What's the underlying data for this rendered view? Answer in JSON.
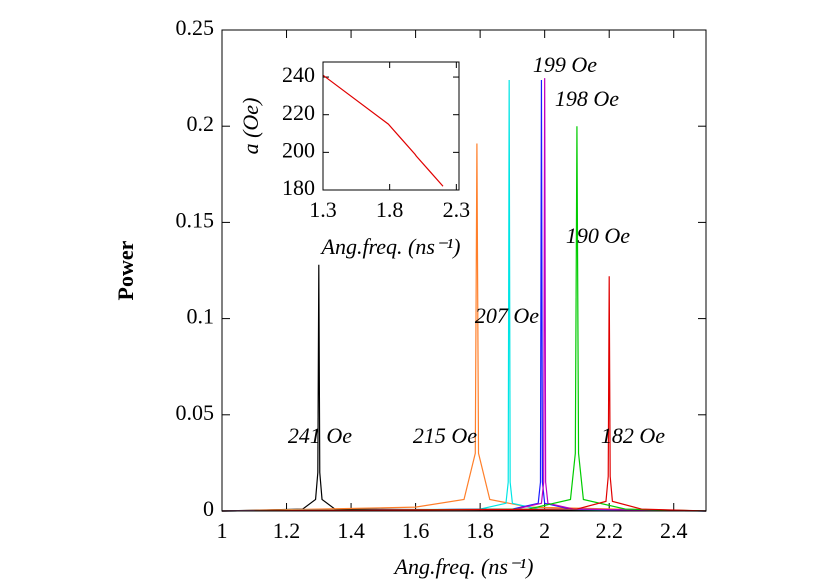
{
  "chart_data": [
    {
      "type": "line",
      "xlabel": "Ang.freq. (ns⁻¹)",
      "ylabel": "Power",
      "xlim": [
        1,
        2.5
      ],
      "ylim": [
        0,
        0.25
      ],
      "xticks": [
        1,
        1.2,
        1.4,
        1.6,
        1.8,
        2,
        2.2,
        2.4
      ],
      "yticks": [
        0,
        0.05,
        0.1,
        0.15,
        0.2,
        0.25
      ],
      "series": [
        {
          "name": "241 Oe",
          "color": "#000000",
          "x": [
            1.0,
            1.25,
            1.29,
            1.297,
            1.3,
            1.303,
            1.31,
            1.35,
            2.5
          ],
          "values": [
            0,
            0.001,
            0.006,
            0.02,
            0.128,
            0.02,
            0.006,
            0.001,
            0
          ]
        },
        {
          "name": "215 Oe",
          "color": "#ff7f2a",
          "x": [
            1.0,
            1.6,
            1.75,
            1.785,
            1.79,
            1.795,
            1.83,
            1.95,
            2.5
          ],
          "values": [
            0,
            0.002,
            0.006,
            0.03,
            0.191,
            0.03,
            0.006,
            0.002,
            0
          ]
        },
        {
          "name": "207 Oe",
          "color": "#00e5e5",
          "x": [
            1.0,
            1.8,
            1.88,
            1.887,
            1.89,
            1.893,
            1.9,
            1.98,
            2.5
          ],
          "values": [
            0,
            0.001,
            0.004,
            0.015,
            0.224,
            0.015,
            0.004,
            0.001,
            0
          ]
        },
        {
          "name": "199 Oe",
          "color": "#1a1aff",
          "x": [
            1.0,
            1.9,
            1.98,
            1.987,
            1.99,
            1.993,
            2.0,
            2.08,
            2.5
          ],
          "values": [
            0,
            0.001,
            0.004,
            0.015,
            0.224,
            0.015,
            0.004,
            0.001,
            0
          ]
        },
        {
          "name": "198 Oe",
          "color": "#c000c0",
          "x": [
            1.0,
            1.91,
            1.99,
            1.997,
            2.0,
            2.003,
            2.01,
            2.09,
            2.5
          ],
          "values": [
            0,
            0.001,
            0.004,
            0.015,
            0.225,
            0.015,
            0.004,
            0.001,
            0
          ]
        },
        {
          "name": "190 Oe",
          "color": "#00cc00",
          "x": [
            1.0,
            1.95,
            2.08,
            2.095,
            2.1,
            2.105,
            2.12,
            2.25,
            2.5
          ],
          "values": [
            0,
            0.001,
            0.006,
            0.03,
            0.2,
            0.03,
            0.006,
            0.001,
            0
          ]
        },
        {
          "name": "182 Oe",
          "color": "#e00000",
          "x": [
            1.0,
            2.1,
            2.19,
            2.197,
            2.2,
            2.203,
            2.21,
            2.3,
            2.5
          ],
          "values": [
            0,
            0.001,
            0.005,
            0.018,
            0.122,
            0.018,
            0.005,
            0.001,
            0
          ]
        }
      ]
    },
    {
      "type": "line",
      "xlabel": "Ang.freq. (ns⁻¹)",
      "ylabel": "a (Oe)",
      "xlim": [
        1.3,
        2.32
      ],
      "ylim": [
        180,
        248
      ],
      "xticks": [
        1.3,
        1.8,
        2.3
      ],
      "yticks": [
        180,
        200,
        220,
        240
      ],
      "series": [
        {
          "color": "#e00000",
          "x": [
            1.3,
            1.79,
            1.89,
            1.99,
            2.0,
            2.1,
            2.2
          ],
          "values": [
            241,
            215,
            207,
            199,
            198,
            190,
            182
          ]
        }
      ]
    }
  ]
}
